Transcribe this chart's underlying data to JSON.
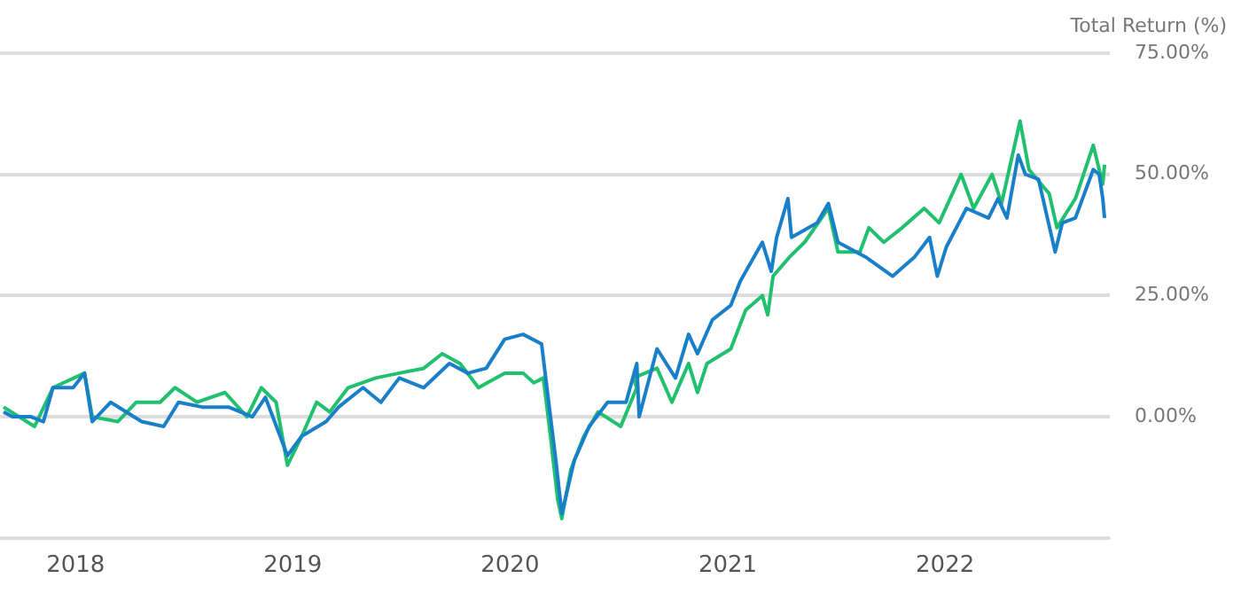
{
  "chart_data": {
    "type": "line",
    "ylabel": "Total Return (%)",
    "xlim": [
      "2017-08-27",
      "2022-10-05"
    ],
    "ylim": [
      -25,
      75
    ],
    "xticks": [
      {
        "value": "2018-01-01",
        "label": "2018"
      },
      {
        "value": "2019-01-01",
        "label": "2019"
      },
      {
        "value": "2020-01-01",
        "label": "2020"
      },
      {
        "value": "2021-01-01",
        "label": "2021"
      },
      {
        "value": "2022-01-01",
        "label": "2022"
      }
    ],
    "yticks": [
      {
        "value": -25,
        "label": null
      },
      {
        "value": 0,
        "label": "0.00%"
      },
      {
        "value": 25,
        "label": "25.00%"
      },
      {
        "value": 50,
        "label": "50.00%"
      },
      {
        "value": 75,
        "label": "75.00%"
      }
    ],
    "grid": "y",
    "legend": false,
    "marker": "none",
    "line_style": "solid",
    "series": [
      {
        "color": "#1a7fc9",
        "x": [
          "2017-09-02",
          "2017-09-17",
          "2017-10-18",
          "2017-11-08",
          "2017-11-24",
          "2017-12-28",
          "2018-01-16",
          "2018-01-29",
          "2018-03-01",
          "2018-04-22",
          "2018-05-29",
          "2018-06-23",
          "2018-08-02",
          "2018-09-15",
          "2018-10-25",
          "2018-11-16",
          "2018-12-23",
          "2019-01-16",
          "2019-02-26",
          "2019-03-19",
          "2019-04-29",
          "2019-05-29",
          "2019-06-29",
          "2019-08-09",
          "2019-09-21",
          "2019-10-22",
          "2019-11-22",
          "2019-12-23",
          "2020-01-23",
          "2020-02-23",
          "2020-03-09",
          "2020-03-18",
          "2020-03-28",
          "2020-04-18",
          "2020-05-13",
          "2020-06-13",
          "2020-07-14",
          "2020-08-01",
          "2020-08-05",
          "2020-09-04",
          "2020-10-05",
          "2020-10-27",
          "2020-11-11",
          "2020-12-06",
          "2021-01-06",
          "2021-01-22",
          "2021-02-28",
          "2021-03-15",
          "2021-03-24",
          "2021-04-12",
          "2021-04-18",
          "2021-05-31",
          "2021-06-19",
          "2021-07-05",
          "2021-08-20",
          "2021-10-05",
          "2021-11-11",
          "2021-12-06",
          "2021-12-19",
          "2022-01-03",
          "2022-02-06",
          "2022-03-15",
          "2022-03-31",
          "2022-04-15",
          "2022-05-04",
          "2022-05-16",
          "2022-06-07",
          "2022-07-05",
          "2022-07-17",
          "2022-08-08",
          "2022-09-07",
          "2022-09-17",
          "2022-09-23",
          "2022-09-26"
        ],
        "values": [
          1,
          0,
          0,
          -1,
          6,
          6,
          9,
          -1,
          3,
          -1,
          -2,
          3,
          2,
          2,
          0,
          4,
          -8,
          -4,
          -1,
          2,
          6,
          3,
          8,
          6,
          11,
          9,
          10,
          16,
          17,
          15,
          0,
          -9,
          -20,
          -9,
          -2,
          3,
          3,
          11,
          0,
          14,
          8,
          17,
          13,
          20,
          23,
          28,
          36,
          30,
          37,
          45,
          37,
          40,
          44,
          36,
          33,
          29,
          33,
          37,
          29,
          35,
          43,
          41,
          45,
          41,
          54,
          50,
          49,
          34,
          40,
          41,
          51,
          50,
          45,
          41
        ]
      },
      {
        "color": "#21c06e",
        "x": [
          "2017-09-02",
          "2017-10-24",
          "2017-11-24",
          "2018-01-16",
          "2018-01-29",
          "2018-03-13",
          "2018-04-13",
          "2018-05-23",
          "2018-06-17",
          "2018-07-24",
          "2018-09-09",
          "2018-10-16",
          "2018-11-09",
          "2018-12-04",
          "2018-12-23",
          "2019-01-16",
          "2019-02-10",
          "2019-03-04",
          "2019-04-04",
          "2019-05-20",
          "2019-06-29",
          "2019-08-09",
          "2019-09-09",
          "2019-10-09",
          "2019-11-09",
          "2019-12-23",
          "2020-01-23",
          "2020-02-10",
          "2020-02-26",
          "2020-03-09",
          "2020-03-21",
          "2020-03-28",
          "2020-04-12",
          "2020-05-04",
          "2020-05-28",
          "2020-07-05",
          "2020-08-01",
          "2020-07-26",
          "2020-09-04",
          "2020-09-29",
          "2020-10-27",
          "2020-11-11",
          "2020-11-27",
          "2021-01-06",
          "2021-01-31",
          "2021-02-28",
          "2021-03-09",
          "2021-03-18",
          "2021-04-15",
          "2021-05-10",
          "2021-06-19",
          "2021-07-05",
          "2021-08-11",
          "2021-08-26",
          "2021-09-20",
          "2021-10-21",
          "2021-11-27",
          "2021-12-22",
          "2022-01-28",
          "2022-02-18",
          "2022-03-21",
          "2022-04-06",
          "2022-05-07",
          "2022-05-22",
          "2022-06-25",
          "2022-07-08",
          "2022-08-08",
          "2022-09-07",
          "2022-09-17",
          "2022-09-23",
          "2022-09-26"
        ],
        "values": [
          2,
          -2,
          6,
          9,
          0,
          -1,
          3,
          3,
          6,
          3,
          5,
          0,
          6,
          3,
          -10,
          -4,
          3,
          1,
          6,
          8,
          9,
          10,
          13,
          11,
          6,
          9,
          9,
          7,
          8,
          -4,
          -17,
          -21,
          -11,
          -4,
          1,
          -2,
          6,
          8,
          10,
          3,
          11,
          5,
          11,
          14,
          22,
          25,
          21,
          29,
          33,
          36,
          43,
          34,
          34,
          39,
          36,
          39,
          43,
          40,
          50,
          43,
          50,
          44,
          61,
          51,
          46,
          39,
          45,
          56,
          51,
          48,
          52
        ]
      }
    ]
  }
}
